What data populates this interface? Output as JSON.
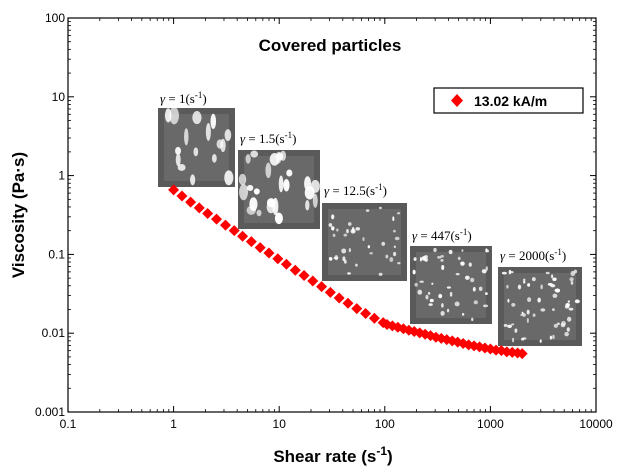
{
  "chart_data": {
    "type": "scatter",
    "title": "Covered particles",
    "xlabel": "Shear rate (s-1)",
    "xlabel_parts": {
      "text": "Shear rate (s",
      "sup": "-1",
      "close": ")"
    },
    "ylabel": "Viscosity (Pa·s)",
    "xscale": "log",
    "yscale": "log",
    "xlim": [
      0.1,
      10000
    ],
    "ylim": [
      0.001,
      100
    ],
    "xticks": [
      "0.1",
      "1",
      "10",
      "100",
      "1000",
      "10000"
    ],
    "yticks": [
      "0.001",
      "0.01",
      "0.1",
      "1",
      "10",
      "100"
    ],
    "grid": false,
    "legend_position": "top-right",
    "series": [
      {
        "name": "13.02 kA/m",
        "color": "#ff0000",
        "marker": "diamond",
        "x": [
          1.0,
          1.2,
          1.45,
          1.75,
          2.1,
          2.55,
          3.1,
          3.75,
          4.5,
          5.45,
          6.6,
          8.0,
          9.7,
          11.7,
          14.2,
          17.2,
          20.8,
          25.2,
          30.5,
          37.0,
          44.8,
          54.3,
          65.8,
          79.7,
          96.5,
          105,
          118,
          133,
          150,
          169,
          190,
          214,
          241,
          271,
          305,
          343,
          386,
          435,
          490,
          552,
          622,
          700,
          789,
          888,
          1000,
          1130,
          1270,
          1430,
          1610,
          1810,
          2000
        ],
        "y": [
          0.66,
          0.55,
          0.46,
          0.39,
          0.33,
          0.28,
          0.235,
          0.2,
          0.17,
          0.145,
          0.122,
          0.104,
          0.088,
          0.075,
          0.063,
          0.054,
          0.046,
          0.039,
          0.033,
          0.028,
          0.024,
          0.0205,
          0.0178,
          0.0155,
          0.0136,
          0.0129,
          0.0124,
          0.0119,
          0.0114,
          0.0109,
          0.0105,
          0.0101,
          0.0097,
          0.0093,
          0.0089,
          0.0086,
          0.0083,
          0.008,
          0.0077,
          0.0074,
          0.0071,
          0.0069,
          0.0067,
          0.0065,
          0.0063,
          0.0061,
          0.006,
          0.0058,
          0.0057,
          0.0056,
          0.0055
        ]
      }
    ],
    "insets": [
      {
        "label": "1",
        "x": 2.2
      },
      {
        "label": "1.5",
        "x": 9.5
      },
      {
        "label": "12.5",
        "x": 65
      },
      {
        "label": "447",
        "x": 480
      },
      {
        "label": "2000",
        "x": 3400
      }
    ],
    "inset_label_parts": {
      "symbol": "γ",
      "equals": " = ",
      "open": "(s",
      "sup": "-1",
      "close": ")"
    }
  }
}
